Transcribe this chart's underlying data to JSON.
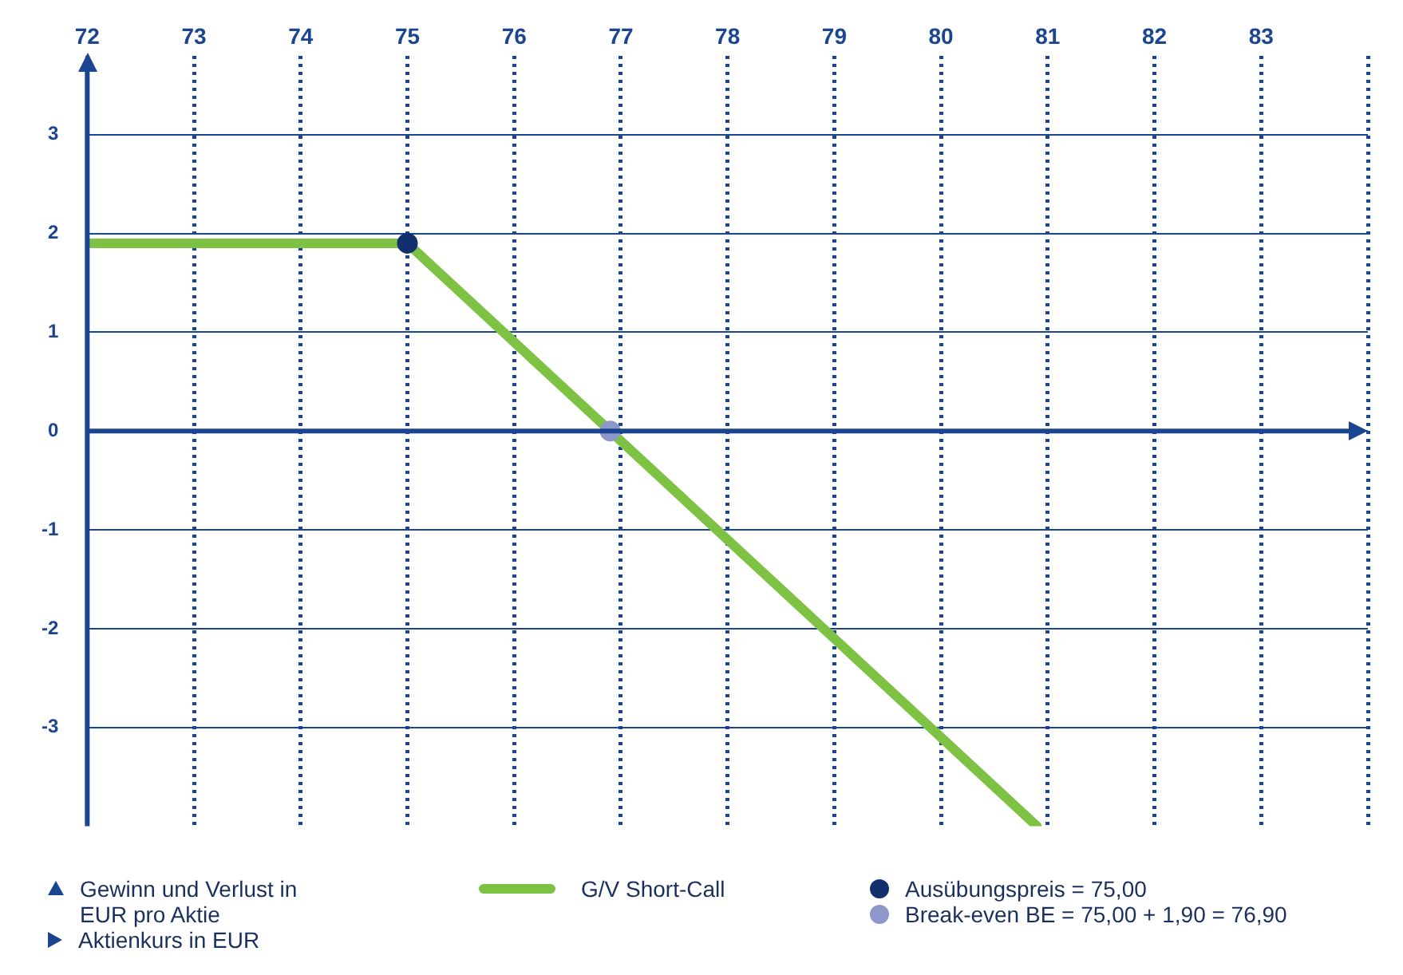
{
  "chart_data": {
    "type": "line",
    "annotations": [
      "Gewinn und Verlust in EUR pro Aktie",
      "Aktienkurs in EUR"
    ],
    "ref_lines": [
      {
        "axis": "y",
        "value": 0,
        "color": "#1b4590"
      }
    ],
    "xlim": [
      72,
      84
    ],
    "xticks": [
      72,
      73,
      74,
      75,
      76,
      77,
      78,
      79,
      80,
      81,
      82,
      83,
      {
        "value": 84,
        "label": null
      }
    ],
    "ylim": [
      -4,
      3.8
    ],
    "yticks": [
      -3,
      -2,
      -1,
      0,
      1,
      2,
      3
    ],
    "grid": true,
    "legend": "bottom",
    "series": [
      {
        "name": "G/V Short-Call",
        "color": "#7dc242",
        "x": [
          72,
          75,
          80.9
        ],
        "values": [
          1.9,
          1.9,
          -4
        ],
        "marker": "none"
      },
      {
        "name": "Ausübungspreis = 75,00",
        "type": "scatter",
        "color": "#12306e",
        "x": [
          75
        ],
        "values": [
          1.9
        ],
        "marker": "circle"
      },
      {
        "name": "Break-even BE = 75,00 + 1,90 = 76,90",
        "type": "scatter",
        "color": "#8e97c9",
        "x": [
          76.9
        ],
        "values": [
          0
        ],
        "marker": "circle"
      }
    ]
  }
}
